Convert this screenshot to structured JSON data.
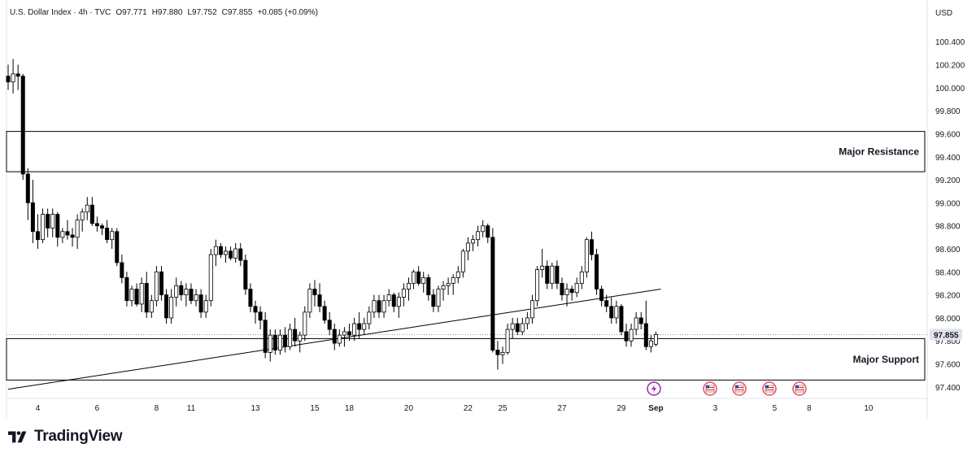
{
  "legend": {
    "symbol": "U.S. Dollar Index · 4h · TVC",
    "open": "O97.771",
    "high": "H97.880",
    "low": "L97.752",
    "close": "C97.855",
    "change": "+0.085 (+0.09%)"
  },
  "currency": "USD",
  "last_price_label": "97.855",
  "brand": {
    "name": "TradingView"
  },
  "zones": [
    {
      "label": "Major Resistance",
      "top": 99.62,
      "bottom": 99.27
    },
    {
      "label": "Major Support",
      "top": 97.82,
      "bottom": 97.46
    }
  ],
  "colors": {
    "bull": "#ffffff",
    "bear": "#000000",
    "line": "#000000",
    "event_us": "#e05260",
    "event_alert": "#9c27b0"
  },
  "event_icons": [
    "lightning-alert-icon",
    "us-flag-icon",
    "us-flag-icon",
    "us-flag-icon",
    "us-flag-icon"
  ],
  "chart_data": {
    "type": "candlestick",
    "title": "U.S. Dollar Index · 4h · TVC",
    "ylim": [
      97.3,
      100.55
    ],
    "y_ticks": [
      "100.400",
      "100.200",
      "100.000",
      "99.800",
      "99.600",
      "99.400",
      "99.200",
      "99.000",
      "98.800",
      "98.600",
      "98.400",
      "98.200",
      "98.000",
      "97.800",
      "97.600",
      "97.400"
    ],
    "y_tick_values": [
      100.4,
      100.2,
      100.0,
      99.8,
      99.6,
      99.4,
      99.2,
      99.0,
      98.8,
      98.6,
      98.4,
      98.2,
      98.0,
      97.8,
      97.6,
      97.4
    ],
    "x_ticks": [
      "4",
      "6",
      "8",
      "11",
      "13",
      "15",
      "18",
      "20",
      "22",
      "25",
      "27",
      "29",
      "Sep",
      "3",
      "5",
      "8",
      "10"
    ],
    "x_tick_index": [
      6,
      18,
      30,
      37,
      50,
      62,
      69,
      81,
      93,
      100,
      112,
      124,
      131,
      143,
      155,
      162,
      174
    ],
    "trendline": {
      "start": [
        0,
        97.38
      ],
      "end": [
        132,
        98.25
      ]
    },
    "candles": [
      [
        100.1,
        100.2,
        99.98,
        100.05
      ],
      [
        100.05,
        100.25,
        99.95,
        100.12
      ],
      [
        100.12,
        100.2,
        99.98,
        100.1
      ],
      [
        100.1,
        100.12,
        99.2,
        99.25
      ],
      [
        99.25,
        99.3,
        98.85,
        99.0
      ],
      [
        99.0,
        99.2,
        98.65,
        98.75
      ],
      [
        98.75,
        98.9,
        98.6,
        98.68
      ],
      [
        98.68,
        98.95,
        98.65,
        98.9
      ],
      [
        98.9,
        98.95,
        98.7,
        98.78
      ],
      [
        98.78,
        98.95,
        98.7,
        98.9
      ],
      [
        98.9,
        98.92,
        98.62,
        98.7
      ],
      [
        98.7,
        98.78,
        98.65,
        98.75
      ],
      [
        98.75,
        98.85,
        98.68,
        98.72
      ],
      [
        98.72,
        98.78,
        98.62,
        98.7
      ],
      [
        98.7,
        98.9,
        98.6,
        98.85
      ],
      [
        98.85,
        98.95,
        98.75,
        98.92
      ],
      [
        98.92,
        99.05,
        98.85,
        98.98
      ],
      [
        98.98,
        99.05,
        98.8,
        98.82
      ],
      [
        98.82,
        98.88,
        98.75,
        98.8
      ],
      [
        98.8,
        98.82,
        98.72,
        98.78
      ],
      [
        98.78,
        98.85,
        98.65,
        98.68
      ],
      [
        98.68,
        98.78,
        98.6,
        98.75
      ],
      [
        98.75,
        98.78,
        98.45,
        98.48
      ],
      [
        98.48,
        98.55,
        98.3,
        98.35
      ],
      [
        98.35,
        98.4,
        98.1,
        98.15
      ],
      [
        98.15,
        98.28,
        98.1,
        98.25
      ],
      [
        98.25,
        98.3,
        98.1,
        98.12
      ],
      [
        98.12,
        98.35,
        98.05,
        98.3
      ],
      [
        98.3,
        98.4,
        98.0,
        98.05
      ],
      [
        98.05,
        98.2,
        98.0,
        98.15
      ],
      [
        98.15,
        98.45,
        98.1,
        98.4
      ],
      [
        98.4,
        98.45,
        98.15,
        98.2
      ],
      [
        98.2,
        98.25,
        97.95,
        98.0
      ],
      [
        98.0,
        98.25,
        97.95,
        98.18
      ],
      [
        98.18,
        98.35,
        98.1,
        98.28
      ],
      [
        98.28,
        98.32,
        98.15,
        98.2
      ],
      [
        98.2,
        98.3,
        98.1,
        98.25
      ],
      [
        98.25,
        98.3,
        98.12,
        98.15
      ],
      [
        98.15,
        98.25,
        98.1,
        98.2
      ],
      [
        98.2,
        98.25,
        98.0,
        98.05
      ],
      [
        98.05,
        98.2,
        98.0,
        98.15
      ],
      [
        98.15,
        98.6,
        98.1,
        98.55
      ],
      [
        98.55,
        98.68,
        98.45,
        98.62
      ],
      [
        98.62,
        98.65,
        98.52,
        98.55
      ],
      [
        98.55,
        98.62,
        98.48,
        98.58
      ],
      [
        98.58,
        98.62,
        98.5,
        98.52
      ],
      [
        98.52,
        98.65,
        98.48,
        98.6
      ],
      [
        98.6,
        98.65,
        98.45,
        98.5
      ],
      [
        98.5,
        98.55,
        98.2,
        98.25
      ],
      [
        98.25,
        98.3,
        98.05,
        98.1
      ],
      [
        98.1,
        98.15,
        97.95,
        98.05
      ],
      [
        98.05,
        98.1,
        97.9,
        97.98
      ],
      [
        97.98,
        98.05,
        97.65,
        97.7
      ],
      [
        97.7,
        97.9,
        97.62,
        97.85
      ],
      [
        97.85,
        97.9,
        97.68,
        97.72
      ],
      [
        97.72,
        97.9,
        97.68,
        97.85
      ],
      [
        97.85,
        97.92,
        97.7,
        97.75
      ],
      [
        97.75,
        97.95,
        97.72,
        97.9
      ],
      [
        97.9,
        98.0,
        97.75,
        97.8
      ],
      [
        97.8,
        97.88,
        97.7,
        97.85
      ],
      [
        97.85,
        98.1,
        97.8,
        98.05
      ],
      [
        98.05,
        98.3,
        98.0,
        98.25
      ],
      [
        98.25,
        98.33,
        98.1,
        98.2
      ],
      [
        98.2,
        98.3,
        98.05,
        98.1
      ],
      [
        98.1,
        98.15,
        97.95,
        97.98
      ],
      [
        97.98,
        98.05,
        97.85,
        97.9
      ],
      [
        97.9,
        97.95,
        97.72,
        97.78
      ],
      [
        97.78,
        97.9,
        97.75,
        97.85
      ],
      [
        97.85,
        97.92,
        97.75,
        97.88
      ],
      [
        97.88,
        97.95,
        97.8,
        97.85
      ],
      [
        97.85,
        98.0,
        97.8,
        97.95
      ],
      [
        97.95,
        98.05,
        97.82,
        97.9
      ],
      [
        97.9,
        98.0,
        97.85,
        97.95
      ],
      [
        97.95,
        98.1,
        97.9,
        98.05
      ],
      [
        98.05,
        98.2,
        98.0,
        98.15
      ],
      [
        98.15,
        98.2,
        98.0,
        98.05
      ],
      [
        98.05,
        98.2,
        98.0,
        98.15
      ],
      [
        98.15,
        98.25,
        98.1,
        98.2
      ],
      [
        98.2,
        98.22,
        98.05,
        98.1
      ],
      [
        98.1,
        98.22,
        98.0,
        98.18
      ],
      [
        98.18,
        98.3,
        98.1,
        98.25
      ],
      [
        98.25,
        98.35,
        98.15,
        98.3
      ],
      [
        98.3,
        98.42,
        98.25,
        98.4
      ],
      [
        98.4,
        98.45,
        98.28,
        98.3
      ],
      [
        98.3,
        98.4,
        98.22,
        98.35
      ],
      [
        98.35,
        98.38,
        98.15,
        98.2
      ],
      [
        98.2,
        98.25,
        98.05,
        98.1
      ],
      [
        98.1,
        98.28,
        98.05,
        98.25
      ],
      [
        98.25,
        98.32,
        98.15,
        98.28
      ],
      [
        98.28,
        98.35,
        98.2,
        98.3
      ],
      [
        98.3,
        98.38,
        98.2,
        98.35
      ],
      [
        98.35,
        98.45,
        98.3,
        98.4
      ],
      [
        98.4,
        98.6,
        98.35,
        98.58
      ],
      [
        98.58,
        98.7,
        98.5,
        98.65
      ],
      [
        98.65,
        98.72,
        98.58,
        98.68
      ],
      [
        98.68,
        98.8,
        98.62,
        98.75
      ],
      [
        98.75,
        98.85,
        98.7,
        98.8
      ],
      [
        98.8,
        98.82,
        98.65,
        98.7
      ],
      [
        98.7,
        98.78,
        97.7,
        97.72
      ],
      [
        97.72,
        97.8,
        97.55,
        97.68
      ],
      [
        97.68,
        97.75,
        97.6,
        97.7
      ],
      [
        97.7,
        97.95,
        97.68,
        97.9
      ],
      [
        97.9,
        98.0,
        97.82,
        97.95
      ],
      [
        97.95,
        98.0,
        97.85,
        97.88
      ],
      [
        97.88,
        98.0,
        97.85,
        97.95
      ],
      [
        97.95,
        98.05,
        97.9,
        98.0
      ],
      [
        98.0,
        98.2,
        97.95,
        98.15
      ],
      [
        98.15,
        98.45,
        98.1,
        98.42
      ],
      [
        98.42,
        98.6,
        98.35,
        98.45
      ],
      [
        98.45,
        98.5,
        98.25,
        98.3
      ],
      [
        98.3,
        98.48,
        98.25,
        98.45
      ],
      [
        98.45,
        98.5,
        98.25,
        98.3
      ],
      [
        98.3,
        98.35,
        98.15,
        98.2
      ],
      [
        98.2,
        98.3,
        98.1,
        98.25
      ],
      [
        98.25,
        98.28,
        98.15,
        98.22
      ],
      [
        98.22,
        98.35,
        98.18,
        98.3
      ],
      [
        98.3,
        98.45,
        98.25,
        98.4
      ],
      [
        98.4,
        98.7,
        98.35,
        98.68
      ],
      [
        98.68,
        98.75,
        98.5,
        98.55
      ],
      [
        98.55,
        98.6,
        98.2,
        98.25
      ],
      [
        98.25,
        98.28,
        98.1,
        98.15
      ],
      [
        98.15,
        98.2,
        98.05,
        98.1
      ],
      [
        98.1,
        98.18,
        97.95,
        98.0
      ],
      [
        98.0,
        98.15,
        97.95,
        98.1
      ],
      [
        98.1,
        98.12,
        97.85,
        97.88
      ],
      [
        97.88,
        97.95,
        97.75,
        97.8
      ],
      [
        97.8,
        97.95,
        97.75,
        97.9
      ],
      [
        97.9,
        98.05,
        97.85,
        98.0
      ],
      [
        98.0,
        98.05,
        97.9,
        97.95
      ],
      [
        97.95,
        98.15,
        97.72,
        97.75
      ],
      [
        97.75,
        97.85,
        97.7,
        97.8
      ],
      [
        97.771,
        97.88,
        97.752,
        97.855
      ]
    ]
  }
}
